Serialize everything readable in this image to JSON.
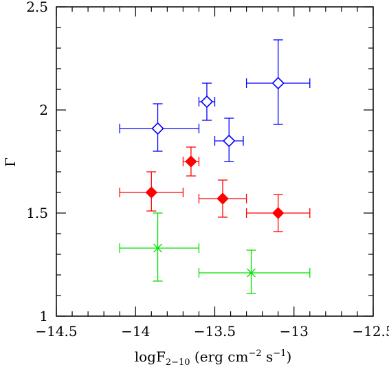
{
  "chart_data": {
    "type": "scatter",
    "title": "",
    "xlabel": "logF2-10 (erg cm-2 s-1)",
    "xlabel_parts": {
      "base": "logF",
      "sub": "2−10",
      "unit_open": " (erg cm",
      "exp1": "−2",
      "mid": " s",
      "exp2": "−1",
      "close": ")"
    },
    "ylabel": "Γ",
    "xlim": [
      -14.5,
      -12.5
    ],
    "ylim": [
      1.0,
      2.5
    ],
    "x_ticks": [
      -14.5,
      -14,
      -13.5,
      -13,
      -12.5
    ],
    "x_tick_labels": [
      "−14.5",
      "−14",
      "−13.5",
      "−13",
      "−12.5"
    ],
    "y_ticks": [
      1,
      1.5,
      2,
      2.5
    ],
    "y_tick_labels": [
      "1",
      "1.5",
      "2",
      "2.5"
    ],
    "grid": false,
    "series": [
      {
        "marker": "open-diamond",
        "color": "#0000ff",
        "points": [
          {
            "x": -13.86,
            "y": 1.91,
            "xerr": [
              0.24,
              0.26
            ],
            "yerr": [
              0.11,
              0.12
            ]
          },
          {
            "x": -13.55,
            "y": 2.04,
            "xerr": [
              0.05,
              0.05
            ],
            "yerr": [
              0.09,
              0.09
            ]
          },
          {
            "x": -13.41,
            "y": 1.85,
            "xerr": [
              0.09,
              0.09
            ],
            "yerr": [
              0.1,
              0.11
            ]
          },
          {
            "x": -13.1,
            "y": 2.13,
            "xerr": [
              0.2,
              0.2
            ],
            "yerr": [
              0.2,
              0.21
            ]
          }
        ]
      },
      {
        "marker": "filled-diamond",
        "color": "#ff0000",
        "points": [
          {
            "x": -13.9,
            "y": 1.6,
            "xerr": [
              0.2,
              0.2
            ],
            "yerr": [
              0.09,
              0.1
            ]
          },
          {
            "x": -13.65,
            "y": 1.75,
            "xerr": [
              0.05,
              0.05
            ],
            "yerr": [
              0.07,
              0.07
            ]
          },
          {
            "x": -13.45,
            "y": 1.57,
            "xerr": [
              0.15,
              0.15
            ],
            "yerr": [
              0.09,
              0.09
            ]
          },
          {
            "x": -13.1,
            "y": 1.5,
            "xerr": [
              0.2,
              0.2
            ],
            "yerr": [
              0.09,
              0.09
            ]
          }
        ]
      },
      {
        "marker": "star",
        "color": "#00e000",
        "points": [
          {
            "x": -13.86,
            "y": 1.33,
            "xerr": [
              0.24,
              0.26
            ],
            "yerr": [
              0.16,
              0.17
            ]
          },
          {
            "x": -13.27,
            "y": 1.21,
            "xerr": [
              0.33,
              0.37
            ],
            "yerr": [
              0.1,
              0.11
            ]
          }
        ]
      }
    ]
  }
}
